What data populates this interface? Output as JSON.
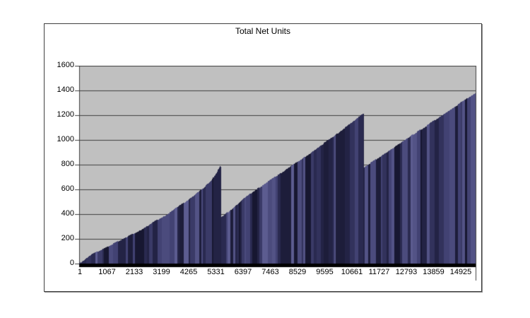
{
  "page": {
    "background": "#ffffff"
  },
  "chart_frame": {
    "border_color": "#404040",
    "shadow_color": "#8a8a8a",
    "background": "#ffffff"
  },
  "chart_data": {
    "type": "bar",
    "title": "Total Net Units",
    "xlabel": "",
    "ylabel": "",
    "legend": null,
    "grid": true,
    "xlim": [
      1,
      14925
    ],
    "ylim": [
      0,
      1600
    ],
    "y_ticks": [
      0,
      200,
      400,
      600,
      800,
      1000,
      1200,
      1400,
      1600
    ],
    "x_ticks": [
      "1",
      "1067",
      "2133",
      "3199",
      "4265",
      "5331",
      "6397",
      "7463",
      "8529",
      "9595",
      "10661",
      "11727",
      "12793",
      "13859",
      "14925"
    ],
    "plot_bg": "#c0c0c0",
    "grid_color": "#404040",
    "baseline_color": "#000000",
    "bar_palette": [
      "#171731",
      "#1d1d3a",
      "#232345",
      "#2a2a50",
      "#32325c",
      "#3a3a67",
      "#424273",
      "#4b4b7d",
      "#535386",
      "#5c5c90"
    ],
    "series": [
      {
        "name": "Total Net Units",
        "profile_points": [
          [
            1,
            0
          ],
          [
            533,
            85
          ],
          [
            1067,
            135
          ],
          [
            1600,
            195
          ],
          [
            2133,
            250
          ],
          [
            2666,
            318
          ],
          [
            3199,
            385
          ],
          [
            3732,
            460
          ],
          [
            4265,
            540
          ],
          [
            4700,
            615
          ],
          [
            4979,
            675
          ],
          [
            5150,
            730
          ],
          [
            5290,
            785
          ],
          [
            5325,
            790
          ],
          [
            5345,
            375
          ],
          [
            5900,
            470
          ],
          [
            6397,
            560
          ],
          [
            7463,
            715
          ],
          [
            8529,
            870
          ],
          [
            9595,
            1035
          ],
          [
            10200,
            1135
          ],
          [
            10550,
            1190
          ],
          [
            10690,
            1210
          ],
          [
            10710,
            778
          ],
          [
            11727,
            925
          ],
          [
            12793,
            1078
          ],
          [
            13859,
            1230
          ],
          [
            14400,
            1310
          ],
          [
            14925,
            1385
          ]
        ]
      }
    ]
  }
}
